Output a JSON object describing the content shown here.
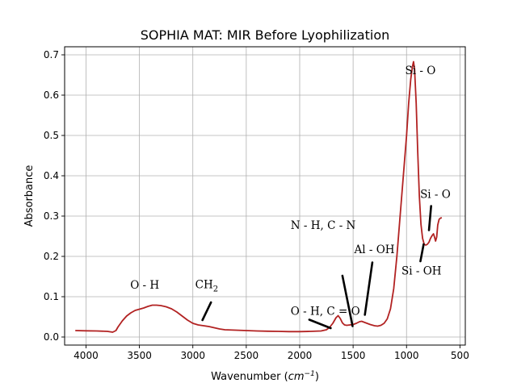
{
  "chart_data": {
    "type": "line",
    "title": "SOPHIA MAT: MIR Before Lyophilization",
    "xlabel": "Wavenumber",
    "xlabel_unit_base": "cm",
    "xlabel_unit_exp": "−1",
    "ylabel": "Absorbance",
    "xlim": [
      4200,
      450
    ],
    "ylim": [
      -0.02,
      0.72
    ],
    "x_inverted": true,
    "grid": true,
    "x_ticks": [
      4000,
      3500,
      3000,
      2500,
      2000,
      1500,
      1000,
      500
    ],
    "y_ticks": [
      0.0,
      0.1,
      0.2,
      0.3,
      0.4,
      0.5,
      0.6,
      0.7
    ],
    "x_tick_labels": [
      "4000",
      "3500",
      "3000",
      "2500",
      "2000",
      "1500",
      "1000",
      "500"
    ],
    "y_tick_labels": [
      "0.0",
      "0.1",
      "0.2",
      "0.3",
      "0.4",
      "0.5",
      "0.6",
      "0.7"
    ],
    "series": [
      {
        "color": "#b22222",
        "points": [
          [
            4100,
            0.016
          ],
          [
            4000,
            0.0155
          ],
          [
            3900,
            0.015
          ],
          [
            3800,
            0.014
          ],
          [
            3750,
            0.012
          ],
          [
            3720,
            0.016
          ],
          [
            3700,
            0.025
          ],
          [
            3660,
            0.04
          ],
          [
            3620,
            0.052
          ],
          [
            3580,
            0.06
          ],
          [
            3540,
            0.066
          ],
          [
            3500,
            0.069
          ],
          [
            3460,
            0.072
          ],
          [
            3420,
            0.076
          ],
          [
            3380,
            0.079
          ],
          [
            3340,
            0.079
          ],
          [
            3300,
            0.078
          ],
          [
            3250,
            0.075
          ],
          [
            3200,
            0.07
          ],
          [
            3150,
            0.062
          ],
          [
            3100,
            0.052
          ],
          [
            3050,
            0.042
          ],
          [
            3000,
            0.034
          ],
          [
            2950,
            0.03
          ],
          [
            2900,
            0.028
          ],
          [
            2850,
            0.026
          ],
          [
            2800,
            0.023
          ],
          [
            2750,
            0.02
          ],
          [
            2700,
            0.018
          ],
          [
            2600,
            0.017
          ],
          [
            2500,
            0.016
          ],
          [
            2400,
            0.015
          ],
          [
            2300,
            0.0145
          ],
          [
            2200,
            0.014
          ],
          [
            2100,
            0.0135
          ],
          [
            2000,
            0.0135
          ],
          [
            1900,
            0.014
          ],
          [
            1800,
            0.015
          ],
          [
            1750,
            0.018
          ],
          [
            1720,
            0.024
          ],
          [
            1690,
            0.034
          ],
          [
            1660,
            0.048
          ],
          [
            1640,
            0.053
          ],
          [
            1620,
            0.046
          ],
          [
            1600,
            0.035
          ],
          [
            1580,
            0.03
          ],
          [
            1560,
            0.029
          ],
          [
            1530,
            0.03
          ],
          [
            1500,
            0.031
          ],
          [
            1470,
            0.034
          ],
          [
            1440,
            0.038
          ],
          [
            1420,
            0.039
          ],
          [
            1400,
            0.037
          ],
          [
            1370,
            0.034
          ],
          [
            1340,
            0.031
          ],
          [
            1300,
            0.028
          ],
          [
            1270,
            0.027
          ],
          [
            1240,
            0.029
          ],
          [
            1210,
            0.034
          ],
          [
            1180,
            0.045
          ],
          [
            1150,
            0.07
          ],
          [
            1120,
            0.12
          ],
          [
            1090,
            0.2
          ],
          [
            1060,
            0.3
          ],
          [
            1030,
            0.4
          ],
          [
            1000,
            0.5
          ],
          [
            980,
            0.58
          ],
          [
            960,
            0.64
          ],
          [
            945,
            0.67
          ],
          [
            935,
            0.683
          ],
          [
            925,
            0.665
          ],
          [
            910,
            0.58
          ],
          [
            895,
            0.46
          ],
          [
            880,
            0.35
          ],
          [
            865,
            0.28
          ],
          [
            850,
            0.245
          ],
          [
            835,
            0.23
          ],
          [
            820,
            0.228
          ],
          [
            805,
            0.23
          ],
          [
            790,
            0.235
          ],
          [
            775,
            0.245
          ],
          [
            760,
            0.252
          ],
          [
            748,
            0.256
          ],
          [
            738,
            0.248
          ],
          [
            728,
            0.238
          ],
          [
            718,
            0.248
          ],
          [
            708,
            0.278
          ],
          [
            695,
            0.292
          ],
          [
            682,
            0.295
          ],
          [
            670,
            0.296
          ]
        ]
      }
    ],
    "annotations": [
      {
        "text": "O - H",
        "x": 3450,
        "y": 0.12,
        "arrow": false
      },
      {
        "text": "CH",
        "sub": "2",
        "x": 2870,
        "y": 0.121,
        "arrow_from": [
          2830,
          0.086
        ],
        "arrow_to": [
          2910,
          0.042
        ]
      },
      {
        "text": "O - H, C = O",
        "x": 1760,
        "y": 0.055,
        "arrow_from": [
          1910,
          0.043
        ],
        "arrow_to": [
          1710,
          0.022
        ]
      },
      {
        "text": "N - H, C - N",
        "x": 1780,
        "y": 0.268,
        "arrow_from": [
          1600,
          0.152
        ],
        "arrow_to": [
          1505,
          0.027
        ]
      },
      {
        "text": "Al - OH",
        "x": 1300,
        "y": 0.208,
        "arrow_from": [
          1320,
          0.185
        ],
        "arrow_to": [
          1390,
          0.055
        ]
      },
      {
        "text": "Si - O",
        "x": 870,
        "y": 0.652,
        "arrow": false
      },
      {
        "text": "Si - O",
        "x": 730,
        "y": 0.345,
        "arrow_from": [
          770,
          0.325
        ],
        "arrow_to": [
          790,
          0.265
        ]
      },
      {
        "text": "Si - OH",
        "x": 860,
        "y": 0.155,
        "arrow_from": [
          870,
          0.188
        ],
        "arrow_to": [
          840,
          0.23
        ]
      }
    ]
  }
}
